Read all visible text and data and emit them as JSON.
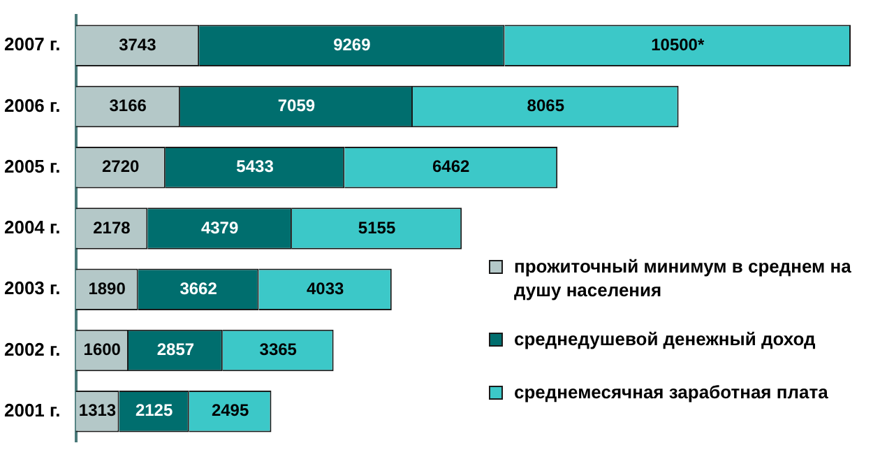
{
  "chart_data": {
    "type": "bar",
    "orientation": "horizontal",
    "stacked": true,
    "legend": "right",
    "categories": [
      "2007 г.",
      "2006 г.",
      "2005 г.",
      "2004 г.",
      "2003 г.",
      "2002 г.",
      "2001 г."
    ],
    "series": [
      {
        "name": "прожиточный минимум в среднем на душу населения",
        "color": "#b4c8c8",
        "values": [
          3743,
          3166,
          2720,
          2178,
          1890,
          1600,
          1313
        ],
        "value_labels": [
          "3743",
          "3166",
          "2720",
          "2178",
          "1890",
          "1600",
          "1313"
        ]
      },
      {
        "name": "среднедушевой денежный доход",
        "color": "#006e6e",
        "values": [
          9269,
          7059,
          5433,
          4379,
          3662,
          2857,
          2125
        ],
        "value_labels": [
          "9269",
          "7059",
          "5433",
          "4379",
          "3662",
          "2857",
          "2125"
        ]
      },
      {
        "name": "среднемесячная заработная плата",
        "color": "#3cc8c8",
        "values": [
          10500,
          8065,
          6462,
          5155,
          4033,
          3365,
          2495
        ],
        "value_labels": [
          "10500*",
          "8065",
          "6462",
          "5155",
          "4033",
          "3365",
          "2495"
        ]
      }
    ]
  }
}
